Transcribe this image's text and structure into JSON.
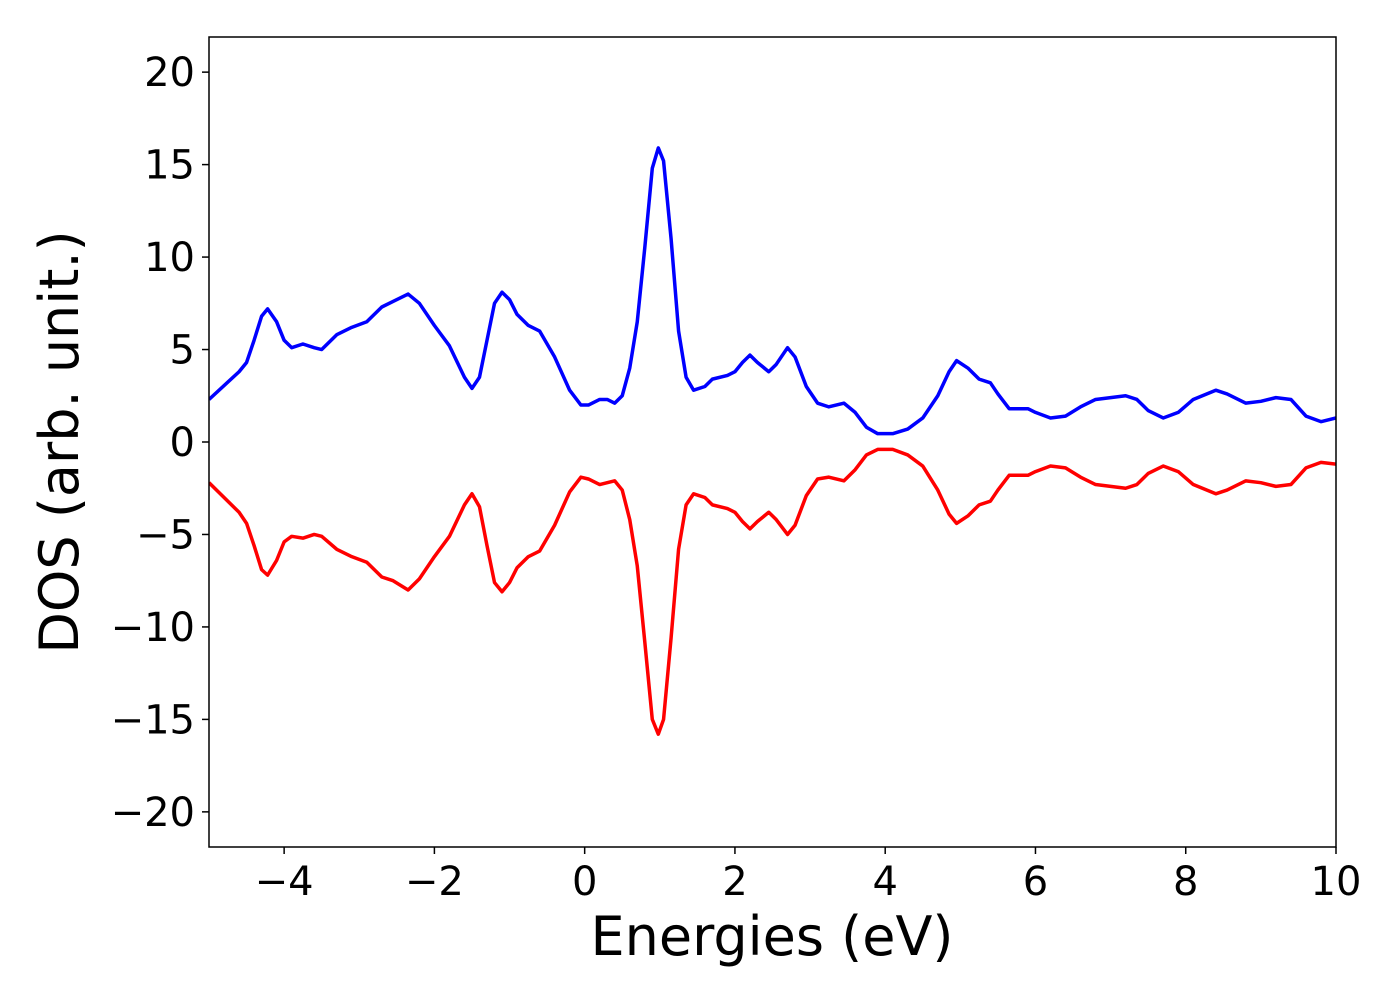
{
  "chart_data": {
    "type": "line",
    "xlabel": "Energies (eV)",
    "ylabel": "DOS (arb. unit.)",
    "x": [
      -5,
      -4.6,
      -4.5,
      -4.4,
      -4.3,
      -4.22,
      -4.1,
      -4.0,
      -3.9,
      -3.75,
      -3.6,
      -3.5,
      -3.3,
      -3.1,
      -2.9,
      -2.7,
      -2.55,
      -2.35,
      -2.2,
      -2.0,
      -1.8,
      -1.6,
      -1.5,
      -1.4,
      -1.3,
      -1.2,
      -1.1,
      -1.0,
      -0.9,
      -0.75,
      -0.6,
      -0.4,
      -0.2,
      -0.05,
      0.05,
      0.2,
      0.3,
      0.4,
      0.5,
      0.6,
      0.7,
      0.8,
      0.9,
      0.98,
      1.05,
      1.15,
      1.25,
      1.35,
      1.45,
      1.6,
      1.7,
      1.9,
      2.0,
      2.1,
      2.2,
      2.3,
      2.45,
      2.55,
      2.7,
      2.8,
      2.95,
      3.1,
      3.25,
      3.45,
      3.6,
      3.75,
      3.9,
      4.1,
      4.3,
      4.5,
      4.7,
      4.85,
      4.95,
      5.1,
      5.25,
      5.4,
      5.5,
      5.65,
      5.9,
      6.0,
      6.2,
      6.4,
      6.6,
      6.8,
      7.0,
      7.2,
      7.35,
      7.5,
      7.7,
      7.9,
      8.1,
      8.4,
      8.55,
      8.8,
      9.0,
      9.2,
      9.4,
      9.6,
      9.8,
      10.0
    ],
    "series": [
      {
        "color": "#0000ff",
        "values": [
          2.3,
          3.8,
          4.3,
          5.5,
          6.8,
          7.2,
          6.5,
          5.5,
          5.1,
          5.3,
          5.1,
          5.0,
          5.8,
          6.2,
          6.5,
          7.3,
          7.6,
          8.0,
          7.5,
          6.3,
          5.2,
          3.5,
          2.9,
          3.5,
          5.5,
          7.5,
          8.1,
          7.7,
          6.9,
          6.3,
          6.0,
          4.6,
          2.8,
          2.0,
          2.0,
          2.3,
          2.3,
          2.1,
          2.5,
          4.0,
          6.5,
          10.5,
          14.8,
          15.9,
          15.2,
          11,
          6,
          3.5,
          2.8,
          3.0,
          3.4,
          3.6,
          3.8,
          4.3,
          4.7,
          4.3,
          3.8,
          4.2,
          5.1,
          4.6,
          3.0,
          2.1,
          1.9,
          2.1,
          1.6,
          0.8,
          0.45,
          0.45,
          0.7,
          1.3,
          2.5,
          3.8,
          4.4,
          4.0,
          3.4,
          3.2,
          2.6,
          1.8,
          1.8,
          1.6,
          1.3,
          1.4,
          1.9,
          2.3,
          2.4,
          2.5,
          2.3,
          1.7,
          1.3,
          1.6,
          2.3,
          2.8,
          2.6,
          2.1,
          2.2,
          2.4,
          2.3,
          1.4,
          1.1,
          1.3
        ]
      },
      {
        "color": "#ff0000",
        "values": [
          -2.2,
          -3.8,
          -4.4,
          -5.6,
          -6.9,
          -7.2,
          -6.4,
          -5.4,
          -5.1,
          -5.2,
          -5.0,
          -5.1,
          -5.8,
          -6.2,
          -6.5,
          -7.3,
          -7.5,
          -8.0,
          -7.4,
          -6.2,
          -5.1,
          -3.4,
          -2.8,
          -3.5,
          -5.6,
          -7.6,
          -8.1,
          -7.6,
          -6.8,
          -6.2,
          -5.9,
          -4.5,
          -2.7,
          -1.9,
          -2.0,
          -2.3,
          -2.2,
          -2.1,
          -2.6,
          -4.2,
          -6.7,
          -10.8,
          -15.0,
          -15.8,
          -15.0,
          -10.6,
          -5.8,
          -3.4,
          -2.8,
          -3.0,
          -3.4,
          -3.6,
          -3.8,
          -4.3,
          -4.7,
          -4.3,
          -3.8,
          -4.2,
          -5.0,
          -4.5,
          -2.9,
          -2.0,
          -1.9,
          -2.1,
          -1.5,
          -0.7,
          -0.4,
          -0.4,
          -0.7,
          -1.3,
          -2.6,
          -3.9,
          -4.4,
          -4.0,
          -3.4,
          -3.2,
          -2.6,
          -1.8,
          -1.8,
          -1.6,
          -1.3,
          -1.4,
          -1.9,
          -2.3,
          -2.4,
          -2.5,
          -2.3,
          -1.7,
          -1.3,
          -1.6,
          -2.3,
          -2.8,
          -2.6,
          -2.1,
          -2.2,
          -2.4,
          -2.3,
          -1.4,
          -1.1,
          -1.2
        ]
      }
    ],
    "xlim": [
      -5,
      10
    ],
    "ylim": [
      -21.9,
      21.9
    ],
    "xticks": [
      {
        "value": -4,
        "label": "−4"
      },
      {
        "value": -2,
        "label": "−2"
      },
      0,
      2,
      4,
      6,
      8,
      10
    ],
    "yticks": [
      {
        "value": -20,
        "label": "−20"
      },
      {
        "value": -15,
        "label": "−15"
      },
      {
        "value": -10,
        "label": "−10"
      },
      {
        "value": -5,
        "label": "−5"
      },
      0,
      5,
      10,
      15,
      20
    ]
  }
}
